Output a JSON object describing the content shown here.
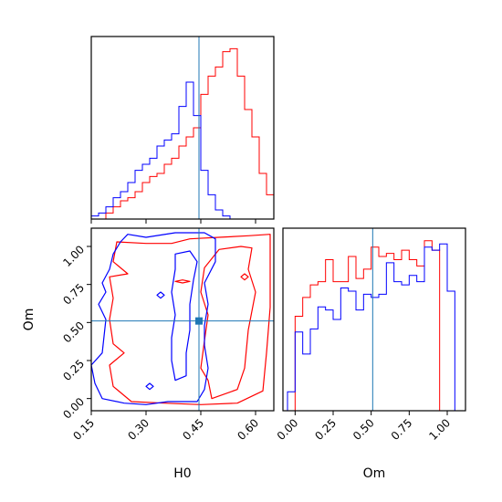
{
  "colors": {
    "series_red": "#ff0000",
    "series_blue": "#0000ff",
    "truth": "#1f77b4",
    "frame": "#000000"
  },
  "chart_data": [
    {
      "type": "histogram",
      "panel": "H0 marginal",
      "x_domain": [
        0.15,
        0.65
      ],
      "bin_edges": [
        0.15,
        0.17,
        0.19,
        0.21,
        0.23,
        0.25,
        0.27,
        0.29,
        0.31,
        0.33,
        0.35,
        0.37,
        0.39,
        0.41,
        0.43,
        0.45,
        0.47,
        0.49,
        0.51,
        0.53,
        0.55,
        0.57,
        0.59,
        0.61,
        0.63,
        0.65
      ],
      "series": [
        {
          "color": "red",
          "counts": [
            0,
            0,
            2,
            4,
            6,
            7,
            9,
            12,
            14,
            15,
            18,
            20,
            24,
            27,
            30,
            41,
            47,
            50,
            55,
            56,
            47,
            36,
            27,
            15,
            8
          ]
        },
        {
          "color": "blue",
          "counts": [
            1,
            2,
            4,
            7,
            9,
            12,
            16,
            18,
            20,
            24,
            26,
            28,
            37,
            45,
            34,
            16,
            8,
            3,
            1,
            0,
            0,
            0,
            0,
            0,
            0
          ]
        }
      ],
      "truth_x": 0.445
    },
    {
      "type": "contour",
      "panel": "H0 vs Om joint",
      "x_domain": [
        0.15,
        0.65
      ],
      "y_domain": [
        -0.08,
        1.12
      ],
      "x_ticks": [
        "0.15",
        "0.30",
        "0.45",
        "0.60"
      ],
      "x_tick_values": [
        0.15,
        0.3,
        0.45,
        0.6
      ],
      "y_ticks": [
        "0.00",
        "0.25",
        "0.50",
        "0.75",
        "1.00"
      ],
      "y_tick_values": [
        0.0,
        0.25,
        0.5,
        0.75,
        1.0
      ],
      "xlabel": "H0",
      "ylabel": "Om",
      "truth": [
        0.445,
        0.51
      ],
      "series": [
        {
          "color": "red",
          "contours": [
            [
              [
                0.37,
                1.02
              ],
              [
                0.42,
                1.05
              ],
              [
                0.5,
                1.06
              ],
              [
                0.58,
                1.07
              ],
              [
                0.64,
                1.08
              ],
              [
                0.64,
                0.6
              ],
              [
                0.63,
                0.3
              ],
              [
                0.62,
                0.05
              ],
              [
                0.55,
                -0.03
              ],
              [
                0.45,
                -0.04
              ],
              [
                0.35,
                -0.03
              ],
              [
                0.26,
                -0.02
              ],
              [
                0.21,
                0.08
              ],
              [
                0.2,
                0.22
              ],
              [
                0.24,
                0.3
              ],
              [
                0.21,
                0.36
              ],
              [
                0.2,
                0.52
              ],
              [
                0.21,
                0.66
              ],
              [
                0.2,
                0.8
              ],
              [
                0.25,
                0.82
              ],
              [
                0.21,
                0.9
              ],
              [
                0.22,
                1.03
              ],
              [
                0.3,
                1.02
              ],
              [
                0.37,
                1.02
              ]
            ],
            [
              [
                0.5,
                0.98
              ],
              [
                0.56,
                1.0
              ],
              [
                0.59,
                0.99
              ],
              [
                0.58,
                0.85
              ],
              [
                0.6,
                0.7
              ],
              [
                0.58,
                0.45
              ],
              [
                0.57,
                0.2
              ],
              [
                0.55,
                0.06
              ],
              [
                0.48,
                0.0
              ],
              [
                0.47,
                0.12
              ],
              [
                0.45,
                0.2
              ],
              [
                0.46,
                0.38
              ],
              [
                0.47,
                0.55
              ],
              [
                0.45,
                0.7
              ],
              [
                0.46,
                0.86
              ],
              [
                0.5,
                0.98
              ]
            ],
            [
              [
                0.57,
                0.82
              ],
              [
                0.58,
                0.8
              ],
              [
                0.57,
                0.78
              ],
              [
                0.56,
                0.8
              ],
              [
                0.57,
                0.82
              ]
            ],
            [
              [
                0.4,
                0.78
              ],
              [
                0.42,
                0.77
              ],
              [
                0.4,
                0.76
              ],
              [
                0.38,
                0.77
              ],
              [
                0.4,
                0.78
              ]
            ]
          ]
        },
        {
          "color": "blue",
          "contours": [
            [
              [
                0.25,
                1.08
              ],
              [
                0.3,
                1.06
              ],
              [
                0.38,
                1.09
              ],
              [
                0.46,
                1.09
              ],
              [
                0.49,
                1.05
              ],
              [
                0.49,
                0.9
              ],
              [
                0.46,
                0.76
              ],
              [
                0.47,
                0.62
              ],
              [
                0.46,
                0.48
              ],
              [
                0.46,
                0.35
              ],
              [
                0.47,
                0.2
              ],
              [
                0.46,
                0.06
              ],
              [
                0.44,
                -0.02
              ],
              [
                0.36,
                -0.02
              ],
              [
                0.3,
                -0.04
              ],
              [
                0.24,
                -0.03
              ],
              [
                0.18,
                0.0
              ],
              [
                0.16,
                0.1
              ],
              [
                0.15,
                0.22
              ],
              [
                0.18,
                0.3
              ],
              [
                0.19,
                0.52
              ],
              [
                0.17,
                0.62
              ],
              [
                0.19,
                0.7
              ],
              [
                0.18,
                0.76
              ],
              [
                0.2,
                0.85
              ],
              [
                0.21,
                0.95
              ],
              [
                0.23,
                1.03
              ],
              [
                0.25,
                1.08
              ]
            ],
            [
              [
                0.38,
                0.95
              ],
              [
                0.42,
                0.97
              ],
              [
                0.44,
                0.9
              ],
              [
                0.43,
                0.78
              ],
              [
                0.42,
                0.62
              ],
              [
                0.42,
                0.45
              ],
              [
                0.41,
                0.3
              ],
              [
                0.41,
                0.15
              ],
              [
                0.38,
                0.12
              ],
              [
                0.37,
                0.25
              ],
              [
                0.37,
                0.4
              ],
              [
                0.38,
                0.55
              ],
              [
                0.37,
                0.7
              ],
              [
                0.38,
                0.85
              ],
              [
                0.38,
                0.95
              ]
            ],
            [
              [
                0.34,
                0.7
              ],
              [
                0.35,
                0.68
              ],
              [
                0.34,
                0.66
              ],
              [
                0.33,
                0.68
              ],
              [
                0.34,
                0.7
              ]
            ],
            [
              [
                0.31,
                0.1
              ],
              [
                0.32,
                0.08
              ],
              [
                0.31,
                0.06
              ],
              [
                0.3,
                0.08
              ],
              [
                0.31,
                0.1
              ]
            ]
          ]
        }
      ]
    },
    {
      "type": "histogram",
      "panel": "Om marginal",
      "x_domain": [
        -0.08,
        1.12
      ],
      "x_ticks": [
        "0.00",
        "0.25",
        "0.50",
        "0.75",
        "1.00"
      ],
      "x_tick_values": [
        0.0,
        0.25,
        0.5,
        0.75,
        1.0
      ],
      "xlabel": "Om",
      "bin_edges": [
        -0.05,
        0.0,
        0.05,
        0.1,
        0.15,
        0.2,
        0.25,
        0.3,
        0.35,
        0.4,
        0.45,
        0.5,
        0.55,
        0.6,
        0.65,
        0.7,
        0.75,
        0.8,
        0.85,
        0.9,
        0.95,
        1.0,
        1.05
      ],
      "series": [
        {
          "color": "red",
          "counts": [
            0,
            30,
            36,
            40,
            41,
            48,
            41,
            41,
            49,
            42,
            45,
            52,
            49,
            50,
            48,
            51,
            48,
            46,
            54,
            51,
            0,
            0
          ]
        },
        {
          "color": "blue",
          "counts": [
            6,
            25,
            18,
            26,
            33,
            32,
            29,
            39,
            38,
            32,
            37,
            36,
            37,
            47,
            41,
            40,
            43,
            41,
            52,
            51,
            53,
            38
          ]
        }
      ],
      "truth_x": 0.51
    }
  ]
}
